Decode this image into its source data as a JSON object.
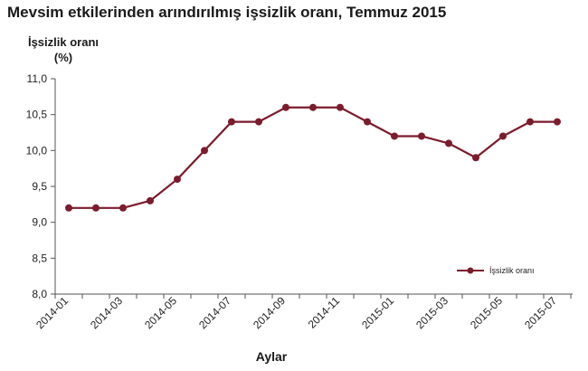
{
  "chart_data": {
    "type": "line",
    "title": "Mevsim etkilerinden arındırılmış işsizlik oranı, Temmuz 2015",
    "ylabel_line1": "İşsizlik oranı",
    "ylabel_line2": "(%)",
    "xlabel": "Aylar",
    "ylim": [
      8.0,
      11.0
    ],
    "yticks": [
      "8,0",
      "8,5",
      "9,0",
      "9,5",
      "10,0",
      "10,5",
      "11,0"
    ],
    "ytick_values": [
      8.0,
      8.5,
      9.0,
      9.5,
      10.0,
      10.5,
      11.0
    ],
    "x": [
      "2014-01",
      "2014-02",
      "2014-03",
      "2014-04",
      "2014-05",
      "2014-06",
      "2014-07",
      "2014-08",
      "2014-09",
      "2014-10",
      "2014-11",
      "2014-12",
      "2015-01",
      "2015-02",
      "2015-03",
      "2015-04",
      "2015-05",
      "2015-06",
      "2015-07"
    ],
    "xtick_labels": [
      "2014-01",
      "2014-03",
      "2014-05",
      "2014-07",
      "2014-09",
      "2014-11",
      "2015-01",
      "2015-03",
      "2015-05",
      "2015-07"
    ],
    "series": [
      {
        "name": "İşsizlik oranı",
        "color": "#7b1c2c",
        "values": [
          9.2,
          9.2,
          9.2,
          9.3,
          9.6,
          10.0,
          10.4,
          10.4,
          10.6,
          10.6,
          10.6,
          10.4,
          10.2,
          10.2,
          10.1,
          9.9,
          10.2,
          10.4,
          10.4
        ]
      }
    ],
    "grid": false,
    "legend_position": "lower-right"
  }
}
